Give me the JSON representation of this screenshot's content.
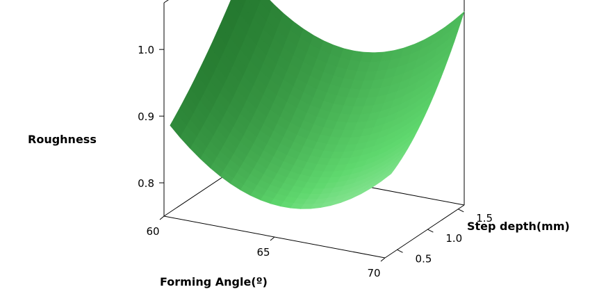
{
  "chart_data": {
    "type": "surface",
    "title": "",
    "xlabel": "Forming Angle(º)",
    "ylabel": "Step depth(mm)",
    "zlabel": "Roughness",
    "x_ticks": [
      "60",
      "65",
      "70"
    ],
    "y_ticks": [
      "0.5",
      "1.0",
      "1.5"
    ],
    "z_ticks": [
      "0.8",
      "0.9",
      "1.0"
    ],
    "xlim": [
      60,
      70
    ],
    "ylim": [
      0.3,
      1.6
    ],
    "zlim": [
      0.75,
      1.07
    ],
    "grid": false,
    "surface_color": "#5fd86e",
    "surface": {
      "x": [
        60,
        65,
        70
      ],
      "y": [
        0.4,
        1.0,
        1.6
      ],
      "z": [
        [
          0.88,
          0.79,
          0.87
        ],
        [
          0.95,
          0.85,
          0.93
        ],
        [
          1.04,
          0.95,
          1.04
        ]
      ]
    }
  }
}
